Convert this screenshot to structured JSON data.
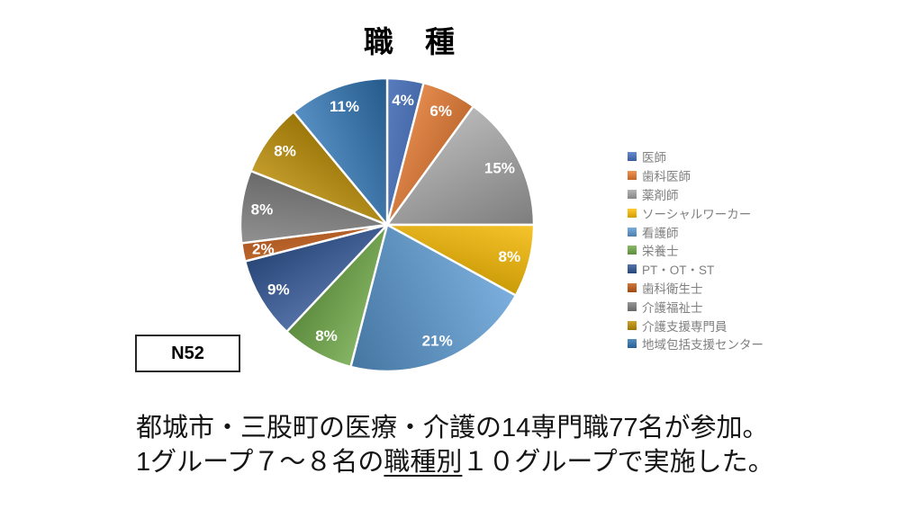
{
  "title": "職　種",
  "sample_size_label": "N52",
  "caption": {
    "line1": "都城市・三股町の医療・介護の14専門職77名が参加。",
    "line2_pre": "1グループ７～８名の",
    "line2_underline": "職種別",
    "line2_post": "１０グループで実施した。"
  },
  "chart_data": {
    "type": "pie",
    "title": "職　種",
    "unit": "percent",
    "legend_position": "right",
    "label_style": "inside-end, white, bold",
    "slice_border_color": "#ffffff",
    "start_angle_deg": 0,
    "direction": "clockwise",
    "slices": [
      {
        "label": "医師",
        "value": 4,
        "color": "#4472C4"
      },
      {
        "label": "歯科医師",
        "value": 6,
        "color": "#ED7D31"
      },
      {
        "label": "薬剤師",
        "value": 15,
        "color": "#A5A5A5"
      },
      {
        "label": "ソーシャルワーカー",
        "value": 8,
        "color": "#FFC000"
      },
      {
        "label": "看護師",
        "value": 21,
        "color": "#5B9BD5"
      },
      {
        "label": "栄養士",
        "value": 8,
        "color": "#70AD47"
      },
      {
        "label": "PT・OT・ST",
        "value": 9,
        "color": "#2F5597"
      },
      {
        "label": "歯科衛生士",
        "value": 2,
        "color": "#C55A11"
      },
      {
        "label": "介護福祉士",
        "value": 8,
        "color": "#7F7F7F"
      },
      {
        "label": "介護支援専門員",
        "value": 8,
        "color": "#BF8F00"
      },
      {
        "label": "地域包括支援センター",
        "value": 11,
        "color": "#2E75B6"
      }
    ]
  }
}
